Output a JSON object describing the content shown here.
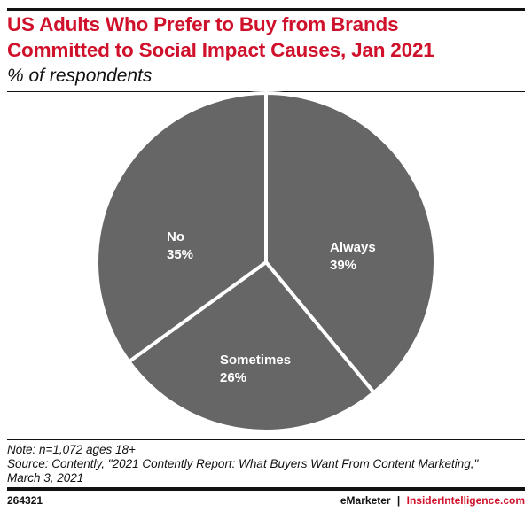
{
  "header": {
    "title_line1": "US Adults Who Prefer to Buy from Brands",
    "title_line2": "Committed to Social Impact Causes, Jan 2021",
    "subtitle": "% of respondents"
  },
  "chart_data": {
    "type": "pie",
    "title": "US Adults Who Prefer to Buy from Brands Committed to Social Impact Causes, Jan 2021",
    "subtitle": "% of respondents",
    "categories": [
      "Always",
      "Sometimes",
      "No"
    ],
    "values": [
      39,
      26,
      35
    ],
    "value_labels": [
      "39%",
      "26%",
      "35%"
    ],
    "start": "12 o'clock, clockwise",
    "colors": {
      "slice": "#666666",
      "separator": "#ffffff",
      "title": "#d0112b"
    }
  },
  "footer": {
    "note": "Note: n=1,072 ages 18+",
    "source": "Source: Contently, \"2021 Contently Report: What Buyers Want From Content Marketing,\"",
    "source_date": "March 3, 2021",
    "chart_id": "264321",
    "brand": "eMarketer",
    "separator": "|",
    "site": "InsiderIntelligence.com"
  }
}
